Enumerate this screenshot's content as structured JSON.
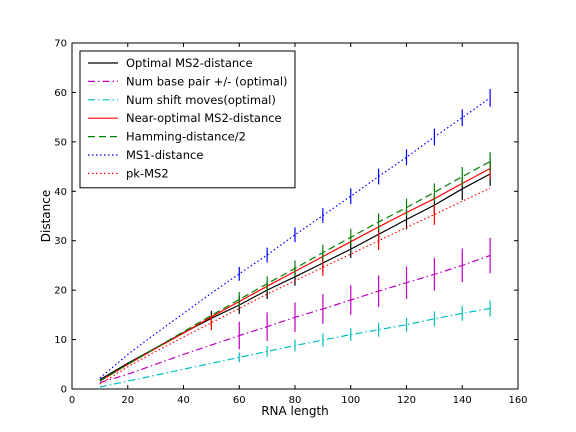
{
  "chart_data": {
    "type": "line",
    "title": "",
    "xlabel": "RNA length",
    "ylabel": "Distance",
    "xlim": [
      0,
      160
    ],
    "ylim": [
      0,
      70
    ],
    "xticks": [
      0,
      20,
      40,
      60,
      80,
      100,
      120,
      140,
      160
    ],
    "yticks": [
      0,
      10,
      20,
      30,
      40,
      50,
      60,
      70
    ],
    "grid": false,
    "legend_position": "upper-left",
    "series": [
      {
        "name": "Optimal MS2-distance",
        "color": "#000000",
        "dash": "solid",
        "x": [
          10,
          20,
          30,
          40,
          50,
          60,
          70,
          80,
          90,
          100,
          110,
          120,
          130,
          140,
          150
        ],
        "y": [
          1.9,
          5.2,
          8.3,
          11.4,
          14.3,
          17.0,
          20.0,
          22.7,
          25.5,
          28.3,
          31.3,
          34.3,
          37.2,
          40.5,
          43.5
        ],
        "errors": [
          [
            50,
            1.5
          ],
          [
            60,
            1.8
          ],
          [
            70,
            1.8
          ],
          [
            80,
            1.8
          ],
          [
            90,
            1.8
          ],
          [
            100,
            1.8
          ],
          [
            110,
            1.9
          ],
          [
            120,
            2.0
          ],
          [
            130,
            2.2
          ],
          [
            140,
            2.3
          ],
          [
            150,
            2.4
          ]
        ]
      },
      {
        "name": "Num base pair +/- (optimal)",
        "color": "#bf00bf",
        "dash": "dashdot",
        "x": [
          10,
          20,
          30,
          40,
          50,
          60,
          70,
          80,
          90,
          100,
          110,
          120,
          130,
          140,
          150
        ],
        "y": [
          1.3,
          3.0,
          5.0,
          7.0,
          8.9,
          10.8,
          12.6,
          14.5,
          16.2,
          18.0,
          19.8,
          21.5,
          23.2,
          25.0,
          27.0
        ],
        "errors": [
          [
            60,
            2.8
          ],
          [
            70,
            2.9
          ],
          [
            80,
            3.0
          ],
          [
            90,
            3.0
          ],
          [
            100,
            3.0
          ],
          [
            110,
            3.2
          ],
          [
            120,
            3.3
          ],
          [
            130,
            3.3
          ],
          [
            140,
            3.4
          ],
          [
            150,
            3.6
          ]
        ]
      },
      {
        "name": "Num shift moves(optimal)",
        "color": "#00bfbf",
        "dash": "dashdot",
        "x": [
          10,
          20,
          30,
          40,
          50,
          60,
          70,
          80,
          90,
          100,
          110,
          120,
          130,
          140,
          150
        ],
        "y": [
          0.4,
          1.6,
          2.8,
          4.0,
          5.2,
          6.4,
          7.6,
          8.8,
          9.9,
          11.0,
          12.0,
          13.0,
          14.2,
          15.3,
          16.3
        ],
        "errors": [
          [
            60,
            1.0
          ],
          [
            70,
            1.1
          ],
          [
            80,
            1.2
          ],
          [
            90,
            1.3
          ],
          [
            100,
            1.3
          ],
          [
            110,
            1.4
          ],
          [
            120,
            1.4
          ],
          [
            130,
            1.5
          ],
          [
            140,
            1.5
          ],
          [
            150,
            1.6
          ]
        ]
      },
      {
        "name": "Near-optimal MS2-distance",
        "color": "#ff0000",
        "dash": "solid",
        "x": [
          10,
          20,
          30,
          40,
          50,
          60,
          70,
          80,
          90,
          100,
          110,
          120,
          130,
          140,
          150
        ],
        "y": [
          1.6,
          5.0,
          8.2,
          11.3,
          14.6,
          17.7,
          20.8,
          23.8,
          26.8,
          29.8,
          32.8,
          35.7,
          38.5,
          41.6,
          44.6
        ],
        "errors": [
          [
            150,
            2.0
          ]
        ]
      },
      {
        "name": "Hamming-distance/2",
        "color": "#007f00",
        "dash": "dashed",
        "x": [
          10,
          20,
          30,
          40,
          50,
          60,
          70,
          80,
          90,
          100,
          110,
          120,
          130,
          140,
          150
        ],
        "y": [
          1.6,
          5.0,
          8.3,
          11.6,
          14.9,
          18.1,
          21.3,
          24.4,
          27.6,
          30.7,
          33.8,
          36.7,
          39.8,
          43.0,
          46.0
        ],
        "errors": [
          [
            60,
            1.5
          ],
          [
            70,
            1.5
          ],
          [
            80,
            1.6
          ],
          [
            90,
            1.6
          ],
          [
            100,
            1.7
          ],
          [
            110,
            1.7
          ],
          [
            120,
            1.8
          ],
          [
            130,
            1.8
          ],
          [
            140,
            1.9
          ],
          [
            150,
            1.9
          ]
        ]
      },
      {
        "name": "MS1-distance",
        "color": "#0000ff",
        "dash": "dotted",
        "x": [
          10,
          20,
          30,
          40,
          50,
          60,
          70,
          80,
          90,
          100,
          110,
          120,
          130,
          140,
          150
        ],
        "y": [
          2.2,
          7.0,
          11.2,
          15.3,
          19.4,
          23.3,
          27.1,
          31.2,
          35.1,
          39.0,
          43.0,
          46.9,
          51.0,
          54.9,
          58.9
        ],
        "errors": [
          [
            60,
            1.4
          ],
          [
            70,
            1.5
          ],
          [
            80,
            1.5
          ],
          [
            90,
            1.5
          ],
          [
            100,
            1.6
          ],
          [
            110,
            1.6
          ],
          [
            120,
            1.6
          ],
          [
            130,
            1.7
          ],
          [
            140,
            1.7
          ],
          [
            150,
            1.8
          ]
        ]
      },
      {
        "name": "pk-MS2",
        "color": "#ff0000",
        "dash": "dotted",
        "x": [
          10,
          20,
          30,
          40,
          50,
          60,
          70,
          80,
          90,
          100,
          110,
          120,
          130,
          140,
          150
        ],
        "y": [
          1.0,
          4.5,
          7.6,
          10.5,
          13.4,
          16.3,
          19.2,
          21.9,
          24.6,
          27.3,
          30.0,
          32.7,
          35.3,
          38.0,
          40.6
        ],
        "errors": [
          [
            50,
            1.5
          ],
          [
            90,
            1.7
          ],
          [
            110,
            1.9
          ],
          [
            130,
            2.1
          ]
        ]
      }
    ]
  }
}
